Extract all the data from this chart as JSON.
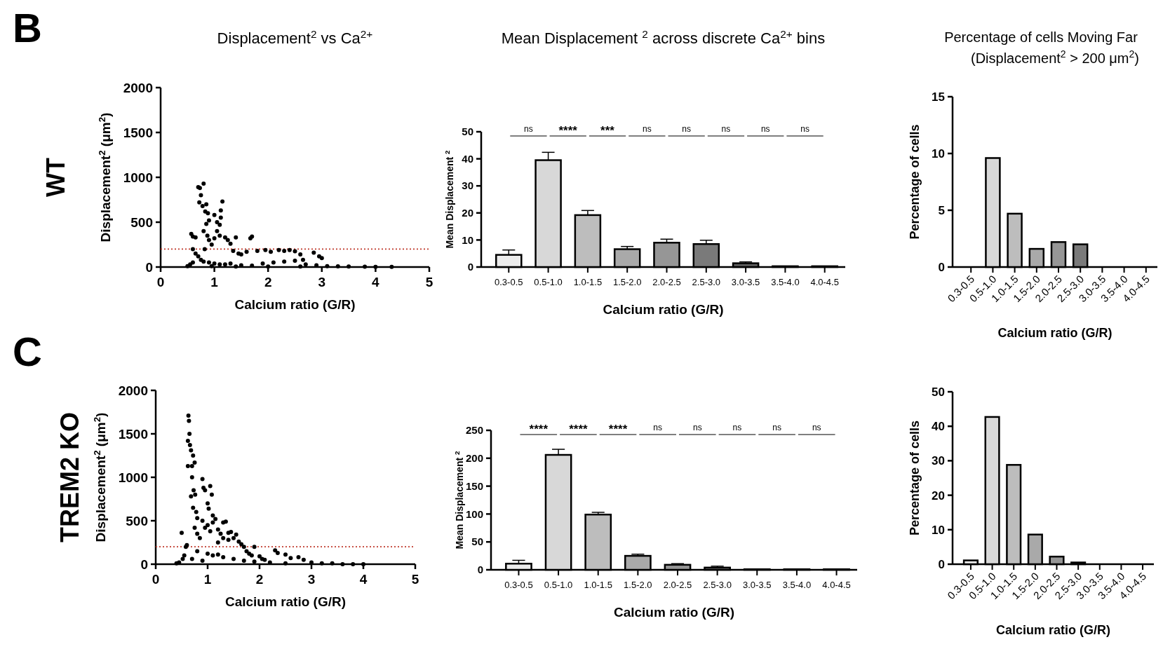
{
  "chart_data": [
    {
      "type": "scatter",
      "title": "Displacement$^{2}$ vs Ca$^{2+}$",
      "xlabel": "Calcium ratio (G/R)",
      "ylabel": "Displacement$^{2}$ (μm$^{2}$)",
      "annotations": [
        "B",
        "WT"
      ],
      "xlim": [
        0,
        5
      ],
      "xticks": [
        0,
        1,
        2,
        3,
        4,
        5
      ],
      "ylim": [
        0,
        2000
      ],
      "yticks": [
        0,
        500,
        1000,
        1500,
        2000
      ],
      "marker": "circle",
      "ref_lines": [
        {
          "axis": "y",
          "value": 200,
          "color": "#c0392b",
          "line_style": "dotted"
        }
      ],
      "series": [
        {
          "color": "#000000",
          "x": [
            0.55,
            0.6,
            0.6,
            0.57,
            0.65,
            0.7,
            0.73,
            0.75,
            0.8,
            0.72,
            0.78,
            0.85,
            0.83,
            0.88,
            0.9,
            0.85,
            0.8,
            0.87,
            0.9,
            0.95,
            0.82,
            1.0,
            1.05,
            1.1,
            1.12,
            1.15,
            1.12,
            1.05,
            1.0,
            1.1,
            1.2,
            1.3,
            1.25,
            1.4,
            1.35,
            1.45,
            1.5,
            1.6,
            1.7,
            1.67,
            1.8,
            1.95,
            2.05,
            2.2,
            2.3,
            2.4,
            2.5,
            2.6,
            2.85,
            2.95,
            3.0,
            0.65,
            0.7,
            0.75,
            0.8,
            0.9,
            1.0,
            1.1,
            1.2,
            1.3,
            1.5,
            1.7,
            1.9,
            2.1,
            2.3,
            2.5,
            2.65,
            2.7,
            2.9,
            3.1,
            3.3,
            3.5,
            3.8,
            4.0,
            4.3,
            0.5,
            0.6,
            0.95,
            1.4,
            2.0,
            2.6
          ],
          "values": [
            30,
            200,
            340,
            370,
            330,
            890,
            880,
            800,
            930,
            720,
            680,
            700,
            620,
            600,
            520,
            480,
            400,
            350,
            300,
            250,
            200,
            580,
            500,
            470,
            550,
            730,
            630,
            400,
            320,
            350,
            330,
            260,
            300,
            330,
            180,
            150,
            140,
            170,
            340,
            320,
            180,
            190,
            170,
            190,
            180,
            190,
            175,
            140,
            160,
            120,
            100,
            150,
            120,
            80,
            60,
            50,
            40,
            30,
            30,
            40,
            20,
            15,
            40,
            50,
            60,
            70,
            80,
            30,
            20,
            10,
            8,
            5,
            3,
            2,
            1,
            10,
            50,
            10,
            5,
            5,
            5
          ]
        }
      ]
    },
    {
      "type": "bar",
      "title": "Mean Displacement $^{2}$ across discrete Ca$^{2+}$ bins",
      "xlabel": "Calcium ratio (G/R)",
      "ylabel": "Mean Displacement $^{2}$",
      "categories": [
        "0.3-0.5",
        "0.5-1.0",
        "1.0-1.5",
        "1.5-2.0",
        "2.0-2.5",
        "2.5-3.0",
        "3.0-3.5",
        "3.5-4.0",
        "4.0-4.5"
      ],
      "annotations": [
        "ns",
        "****",
        "***",
        "ns",
        "ns",
        "ns",
        "ns",
        "ns"
      ],
      "ylim": [
        0,
        50
      ],
      "yticks": [
        0,
        10,
        20,
        30,
        40,
        50
      ],
      "values": [
        4.5,
        39.5,
        19.2,
        6.6,
        9,
        8.5,
        1.4,
        0.3,
        0.3
      ],
      "colors": [
        "#ececec",
        "#d8d8d8",
        "#bdbdbd",
        "#a9a9a9",
        "#969696",
        "#7a7a7a",
        "#5e5e5e",
        "#4a4a4a",
        "#3a3a3a"
      ],
      "errors": [
        [
          4.5,
          6.3
        ],
        [
          39.5,
          42.4
        ],
        [
          19.2,
          20.9
        ],
        [
          6.6,
          7.6
        ],
        [
          9,
          10.3
        ],
        [
          8.5,
          9.9
        ],
        [
          1.4,
          1.9
        ],
        null,
        null
      ]
    },
    {
      "type": "bar",
      "title": "Percentage of cells Moving Far",
      "subtitle": "(Displacement$^{2}$ > 200 μm$^{2}$)",
      "xlabel": "Calcium ratio (G/R)",
      "ylabel": "Percentage of cells",
      "categories": [
        "0.3-0.5",
        "0.5-1.0",
        "1.0-1.5",
        "1.5-2.0",
        "2.0-2.5",
        "2.5-3.0",
        "3.0-3.5",
        "3.5-4.0",
        "4.0-4.5"
      ],
      "ylim": [
        0,
        15
      ],
      "yticks": [
        0,
        5,
        10,
        15
      ],
      "values": [
        0,
        9.6,
        4.7,
        1.6,
        2.2,
        2.0,
        0,
        0,
        0
      ],
      "colors": [
        "#ececec",
        "#d8d8d8",
        "#bdbdbd",
        "#a9a9a9",
        "#969696",
        "#7a7a7a",
        "#5e5e5e",
        "#4a4a4a",
        "#3a3a3a"
      ]
    },
    {
      "type": "scatter",
      "xlabel": "Calcium ratio (G/R)",
      "ylabel": "Displacement$^{2}$ (μm$^{2}$)",
      "annotations": [
        "C",
        "TREM2 KO"
      ],
      "xlim": [
        0,
        5
      ],
      "xticks": [
        0,
        1,
        2,
        3,
        4,
        5
      ],
      "ylim": [
        0,
        2000
      ],
      "yticks": [
        0,
        500,
        1000,
        1500,
        2000
      ],
      "marker": "circle",
      "ref_lines": [
        {
          "axis": "y",
          "value": 200,
          "color": "#c0392b",
          "line_style": "dotted"
        }
      ],
      "series": [
        {
          "color": "#000000",
          "x": [
            0.4,
            0.45,
            0.5,
            0.52,
            0.55,
            0.58,
            0.6,
            0.62,
            0.63,
            0.64,
            0.65,
            0.62,
            0.66,
            0.68,
            0.7,
            0.72,
            0.75,
            0.7,
            0.73,
            0.76,
            0.68,
            0.72,
            0.78,
            0.8,
            0.75,
            0.8,
            0.85,
            0.9,
            0.92,
            0.95,
            1.0,
            1.02,
            1.05,
            1.08,
            1.1,
            0.9,
            0.95,
            1.0,
            1.05,
            1.1,
            1.15,
            1.2,
            1.25,
            1.3,
            1.35,
            1.4,
            1.2,
            1.3,
            1.4,
            1.45,
            1.5,
            1.55,
            1.6,
            1.65,
            1.7,
            1.75,
            1.8,
            1.85,
            1.9,
            2.0,
            2.05,
            2.1,
            2.3,
            2.35,
            2.5,
            2.6,
            2.75,
            2.85,
            3.0,
            3.2,
            3.4,
            3.6,
            3.8,
            4.0,
            0.7,
            0.9,
            1.1,
            1.3,
            1.5,
            1.7,
            1.9,
            2.2,
            2.5,
            0.8,
            1.0,
            1.2
          ],
          "values": [
            10,
            20,
            360,
            60,
            100,
            200,
            220,
            1420,
            1710,
            1650,
            1500,
            1130,
            1370,
            1310,
            1130,
            1250,
            1170,
            1000,
            850,
            800,
            780,
            650,
            600,
            530,
            420,
            350,
            300,
            980,
            880,
            850,
            700,
            640,
            900,
            800,
            560,
            500,
            420,
            450,
            380,
            480,
            520,
            400,
            350,
            480,
            490,
            360,
            250,
            300,
            280,
            370,
            300,
            340,
            260,
            230,
            200,
            150,
            120,
            100,
            200,
            90,
            60,
            50,
            160,
            130,
            110,
            70,
            80,
            50,
            20,
            10,
            10,
            0,
            0,
            0,
            60,
            40,
            100,
            80,
            60,
            40,
            30,
            20,
            10,
            150,
            120,
            110
          ]
        }
      ]
    },
    {
      "type": "bar",
      "xlabel": "Calcium ratio (G/R)",
      "ylabel": "Mean Displacement $^{2}$",
      "categories": [
        "0.3-0.5",
        "0.5-1.0",
        "1.0-1.5",
        "1.5-2.0",
        "2.0-2.5",
        "2.5-3.0",
        "3.0-3.5",
        "3.5-4.0",
        "4.0-4.5"
      ],
      "annotations": [
        "****",
        "****",
        "****",
        "ns",
        "ns",
        "ns",
        "ns",
        "ns"
      ],
      "ylim": [
        0,
        250
      ],
      "yticks": [
        0,
        50,
        100,
        150,
        200,
        250
      ],
      "values": [
        11,
        206,
        99,
        25,
        9,
        4,
        1,
        1,
        1
      ],
      "colors": [
        "#ececec",
        "#d8d8d8",
        "#bdbdbd",
        "#a9a9a9",
        "#969696",
        "#7a7a7a",
        "#5e5e5e",
        "#4a4a4a",
        "#3a3a3a"
      ],
      "errors": [
        [
          11,
          17
        ],
        [
          206,
          216
        ],
        [
          99,
          103
        ],
        [
          25,
          28
        ],
        [
          9,
          11
        ],
        [
          4,
          6.5
        ],
        null,
        null,
        null
      ]
    },
    {
      "type": "bar",
      "xlabel": "Calcium ratio (G/R)",
      "ylabel": "Percentage of cells",
      "categories": [
        "0.3-0.5",
        "0.5-1.0",
        "1.0-1.5",
        "1.5-2.0",
        "2.0-2.5",
        "2.5-3.0",
        "3.0-3.5",
        "3.5-4.0",
        "4.0-4.5"
      ],
      "ylim": [
        0,
        50
      ],
      "yticks": [
        0,
        10,
        20,
        30,
        40,
        50
      ],
      "values": [
        1.1,
        42.7,
        28.8,
        8.6,
        2.2,
        0.5,
        0,
        0,
        0
      ],
      "colors": [
        "#ececec",
        "#d8d8d8",
        "#bdbdbd",
        "#a9a9a9",
        "#969696",
        "#7a7a7a",
        "#5e5e5e",
        "#4a4a4a",
        "#3a3a3a"
      ]
    }
  ]
}
